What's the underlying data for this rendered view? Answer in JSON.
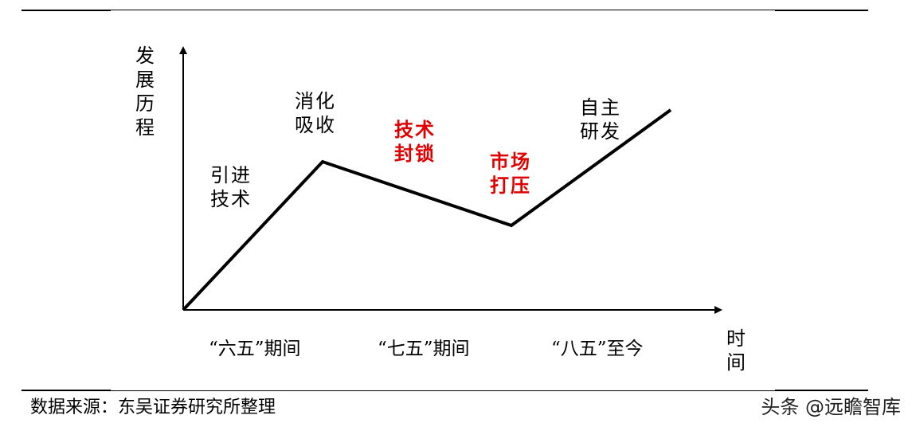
{
  "diagram": {
    "y_axis_label": "发展历程",
    "x_axis_label": "时间",
    "stages": {
      "import": "引进技术",
      "digest": "消化吸收",
      "blockade": "技术封锁",
      "suppression": "市场打压",
      "independent": "自主研发"
    },
    "periods": [
      "“六五”期间",
      "“七五”期间",
      "“八五”至今"
    ],
    "colors": {
      "line": "#000000",
      "highlight": "#e00000"
    }
  },
  "source": "数据来源：东吴证券研究所整理",
  "watermark": "头条 @远瞻智库"
}
